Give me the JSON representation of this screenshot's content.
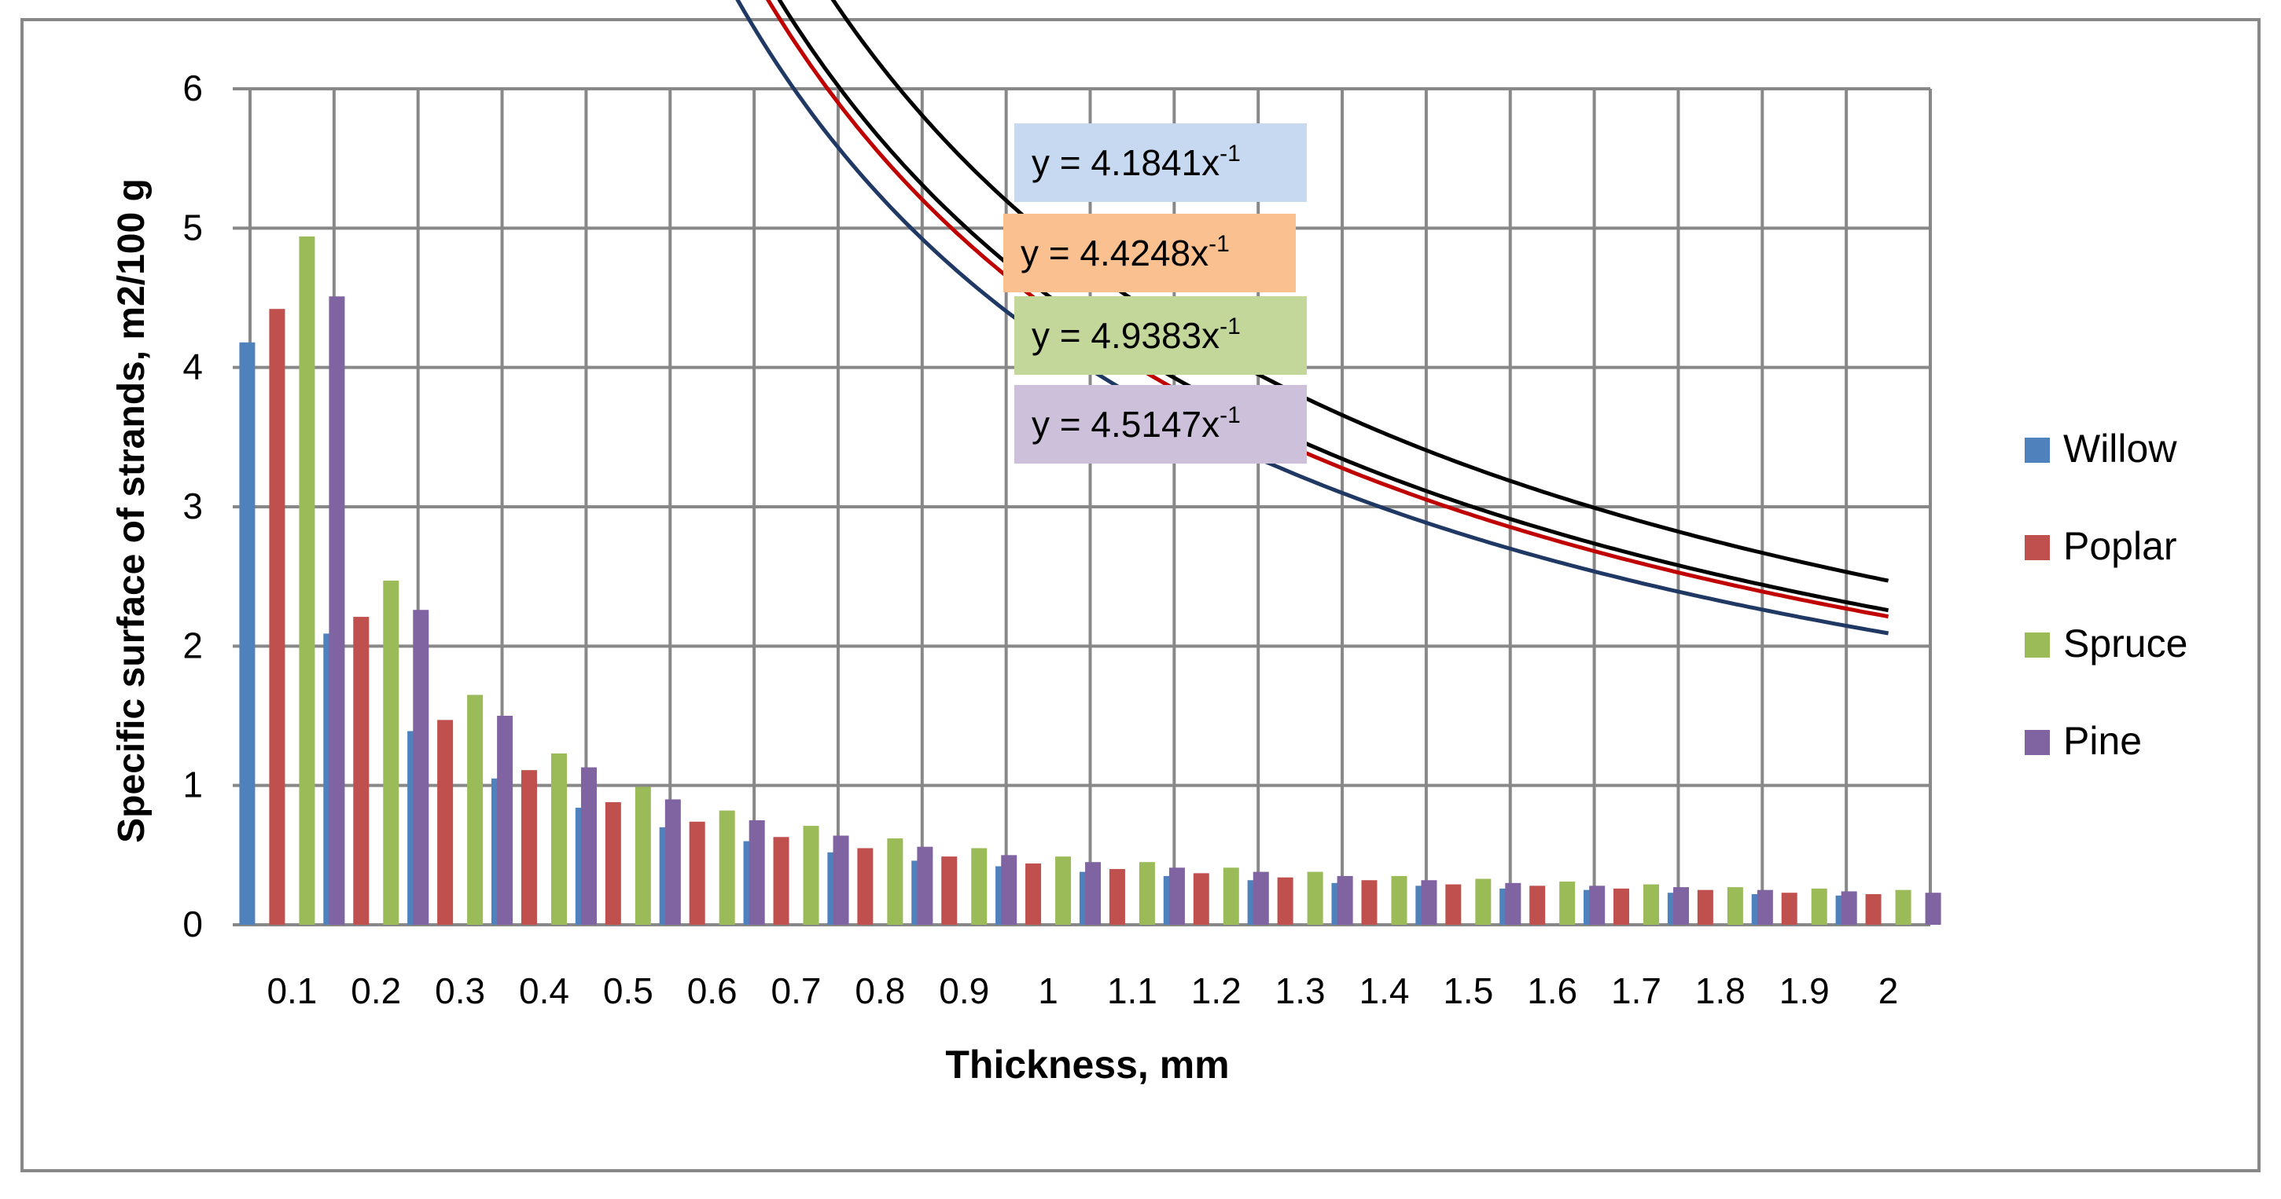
{
  "chart_data": {
    "type": "bar",
    "title": "",
    "xlabel": "Thickness, mm",
    "ylabel": "Specific surface of strands, m2/100 g",
    "ylim": [
      0,
      6
    ],
    "yticks": [
      "0",
      "1",
      "2",
      "3",
      "4",
      "5",
      "6"
    ],
    "grid": true,
    "legend_position": "right",
    "categories": [
      "0.1",
      "0.2",
      "0.3",
      "0.4",
      "0.5",
      "0.6",
      "0.7",
      "0.8",
      "0.9",
      "1",
      "1.1",
      "1.2",
      "1.3",
      "1.4",
      "1.5",
      "1.6",
      "1.7",
      "1.8",
      "1.9",
      "2"
    ],
    "x": [
      0.1,
      0.2,
      0.3,
      0.4,
      0.5,
      0.6,
      0.7,
      0.8,
      0.9,
      1.0,
      1.1,
      1.2,
      1.3,
      1.4,
      1.5,
      1.6,
      1.7,
      1.8,
      1.9,
      2.0
    ],
    "series": [
      {
        "name": "Willow",
        "color": "#4F81BD",
        "values": [
          4.18,
          2.09,
          1.39,
          1.05,
          0.84,
          0.7,
          0.6,
          0.52,
          0.46,
          0.42,
          0.38,
          0.35,
          0.32,
          0.3,
          0.28,
          0.26,
          0.25,
          0.23,
          0.22,
          0.21
        ]
      },
      {
        "name": "Poplar",
        "color": "#C0504D",
        "values": [
          4.42,
          2.21,
          1.47,
          1.11,
          0.88,
          0.74,
          0.63,
          0.55,
          0.49,
          0.44,
          0.4,
          0.37,
          0.34,
          0.32,
          0.29,
          0.28,
          0.26,
          0.25,
          0.23,
          0.22
        ]
      },
      {
        "name": "Spruce",
        "color": "#9BBB59",
        "values": [
          4.94,
          2.47,
          1.65,
          1.23,
          0.99,
          0.82,
          0.71,
          0.62,
          0.55,
          0.49,
          0.45,
          0.41,
          0.38,
          0.35,
          0.33,
          0.31,
          0.29,
          0.27,
          0.26,
          0.25
        ]
      },
      {
        "name": "Pine",
        "color": "#8064A2",
        "values": [
          4.51,
          2.26,
          1.5,
          1.13,
          0.9,
          0.75,
          0.64,
          0.56,
          0.5,
          0.45,
          0.41,
          0.38,
          0.35,
          0.32,
          0.3,
          0.28,
          0.27,
          0.25,
          0.24,
          0.23
        ]
      }
    ],
    "trendlines": [
      {
        "series": "Willow",
        "type": "power",
        "coefficient": 4.1841,
        "exponent": -1,
        "line_color": "#1F3864",
        "equation_prefix": "y = 4.1841x",
        "equation_exp": "-1",
        "box_color": "#C6D9F1"
      },
      {
        "series": "Poplar",
        "type": "power",
        "coefficient": 4.4248,
        "exponent": -1,
        "line_color": "#C00000",
        "equation_prefix": "y = 4.4248x",
        "equation_exp": "-1",
        "box_color": "#FAC090"
      },
      {
        "series": "Spruce",
        "type": "power",
        "coefficient": 4.9383,
        "exponent": -1,
        "line_color": "#000000",
        "equation_prefix": "y = 4.9383x",
        "equation_exp": "-1",
        "box_color": "#C4D79B"
      },
      {
        "series": "Pine",
        "type": "power",
        "coefficient": 4.5147,
        "exponent": -1,
        "line_color": "#000000",
        "equation_prefix": "y = 4.5147x",
        "equation_exp": "-1",
        "box_color": "#CCC0DA"
      }
    ]
  }
}
